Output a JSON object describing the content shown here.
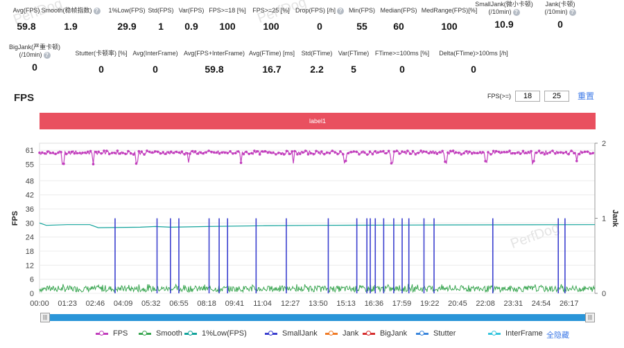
{
  "watermark": "PerfDog",
  "stats_row1": [
    {
      "label": "Avg(FPS)",
      "value": "59.8",
      "help": false
    },
    {
      "label": "Smooth(稳帧指数)",
      "value": "1.9",
      "help": true
    },
    {
      "label": "1%Low(FPS)",
      "value": "29.9",
      "help": false
    },
    {
      "label": "Std(FPS)",
      "value": "1",
      "help": false
    },
    {
      "label": "Var(FPS)",
      "value": "0.9",
      "help": false
    },
    {
      "label": "FPS>=18 [%]",
      "value": "100",
      "help": false
    },
    {
      "label": "FPS>=25 [%]",
      "value": "100",
      "help": false
    },
    {
      "label": "Drop(FPS) [/h]",
      "value": "0",
      "help": true
    },
    {
      "label": "Min(FPS)",
      "value": "55",
      "help": false
    },
    {
      "label": "Median(FPS)",
      "value": "60",
      "help": false
    },
    {
      "label": "MedRange(FPS)[%]",
      "value": "100",
      "help": false
    },
    {
      "label": "SmallJank(微小卡顿)\n(/10min)",
      "value": "10.9",
      "help": true
    },
    {
      "label": "Jank(卡顿)\n(/10min)",
      "value": "0",
      "help": true
    }
  ],
  "stats_row2": [
    {
      "label": "BigJank(严重卡顿)\n(/10min)",
      "value": "0",
      "help": true
    },
    {
      "label": "Stutter(卡顿率) [%]",
      "value": "0",
      "help": false
    },
    {
      "label": "Avg(InterFrame)",
      "value": "0",
      "help": false
    },
    {
      "label": "Avg(FPS+InterFrame)",
      "value": "59.8",
      "help": false
    },
    {
      "label": "Avg(FTime) [ms]",
      "value": "16.7",
      "help": false
    },
    {
      "label": "Std(FTime)",
      "value": "2.2",
      "help": false
    },
    {
      "label": "Var(FTime)",
      "value": "5",
      "help": false
    },
    {
      "label": "FTime>=100ms [%]",
      "value": "0",
      "help": false
    },
    {
      "label": "Delta(FTime)>100ms [/h]",
      "value": "0",
      "help": false
    }
  ],
  "chart_title": "FPS",
  "threshold": {
    "label": "FPS(>=)",
    "value1": "18",
    "value2": "25",
    "reset": "重置"
  },
  "label_bar": "label1",
  "legend_toggle": "全隐藏",
  "chart_data": {
    "type": "line",
    "xlabel": "",
    "ylabel": "FPS",
    "y2label": "Jank",
    "x_ticks": [
      "00:00",
      "01:23",
      "02:46",
      "04:09",
      "05:32",
      "06:55",
      "08:18",
      "09:41",
      "11:04",
      "12:27",
      "13:50",
      "15:13",
      "16:36",
      "17:59",
      "19:22",
      "20:45",
      "22:08",
      "23:31",
      "24:54",
      "26:17"
    ],
    "x_tick_seconds": [
      0,
      83,
      166,
      249,
      332,
      415,
      498,
      581,
      664,
      747,
      830,
      913,
      996,
      1079,
      1162,
      1245,
      1328,
      1411,
      1494,
      1577
    ],
    "x_range_seconds": [
      0,
      1654
    ],
    "y_ticks": [
      0,
      6,
      12,
      18,
      24,
      30,
      36,
      42,
      48,
      55,
      61
    ],
    "ylim": [
      0,
      64
    ],
    "y2_ticks": [
      0,
      1,
      2
    ],
    "y2lim": [
      0,
      2
    ],
    "series": [
      {
        "name": "FPS",
        "color": "#c23fbd",
        "axis": "left",
        "typical": 60,
        "min": 55,
        "max": 61
      },
      {
        "name": "Smooth",
        "color": "#3ba652",
        "axis": "left",
        "typical": 1.9,
        "min": 0,
        "max": 4
      },
      {
        "name": "1%Low(FPS)",
        "color": "#12a39b",
        "axis": "left",
        "points": [
          [
            0,
            30
          ],
          [
            20,
            29
          ],
          [
            83,
            29.3
          ],
          [
            150,
            29.3
          ],
          [
            175,
            28
          ],
          [
            300,
            28.2
          ],
          [
            345,
            28.5
          ],
          [
            390,
            28.2
          ],
          [
            500,
            28.5
          ],
          [
            664,
            28.8
          ],
          [
            830,
            29
          ],
          [
            1079,
            29.1
          ],
          [
            1328,
            29.2
          ],
          [
            1654,
            29.3
          ]
        ]
      },
      {
        "name": "SmallJank",
        "color": "#3a3fcf",
        "axis": "right",
        "events_seconds": [
          225,
          350,
          390,
          415,
          505,
          535,
          560,
          645,
          735,
          860,
          945,
          975,
          985,
          1000,
          1025,
          1055,
          1080,
          1100,
          1145,
          1175,
          1350,
          1545,
          1565
        ]
      },
      {
        "name": "Jank",
        "color": "#f07b26",
        "axis": "right",
        "events_seconds": []
      },
      {
        "name": "BigJank",
        "color": "#d62f2f",
        "axis": "right",
        "events_seconds": []
      },
      {
        "name": "Stutter",
        "color": "#3a86dc",
        "axis": "left",
        "events_seconds": []
      },
      {
        "name": "InterFrame",
        "color": "#35c5dd",
        "axis": "left",
        "events_seconds": []
      }
    ]
  }
}
